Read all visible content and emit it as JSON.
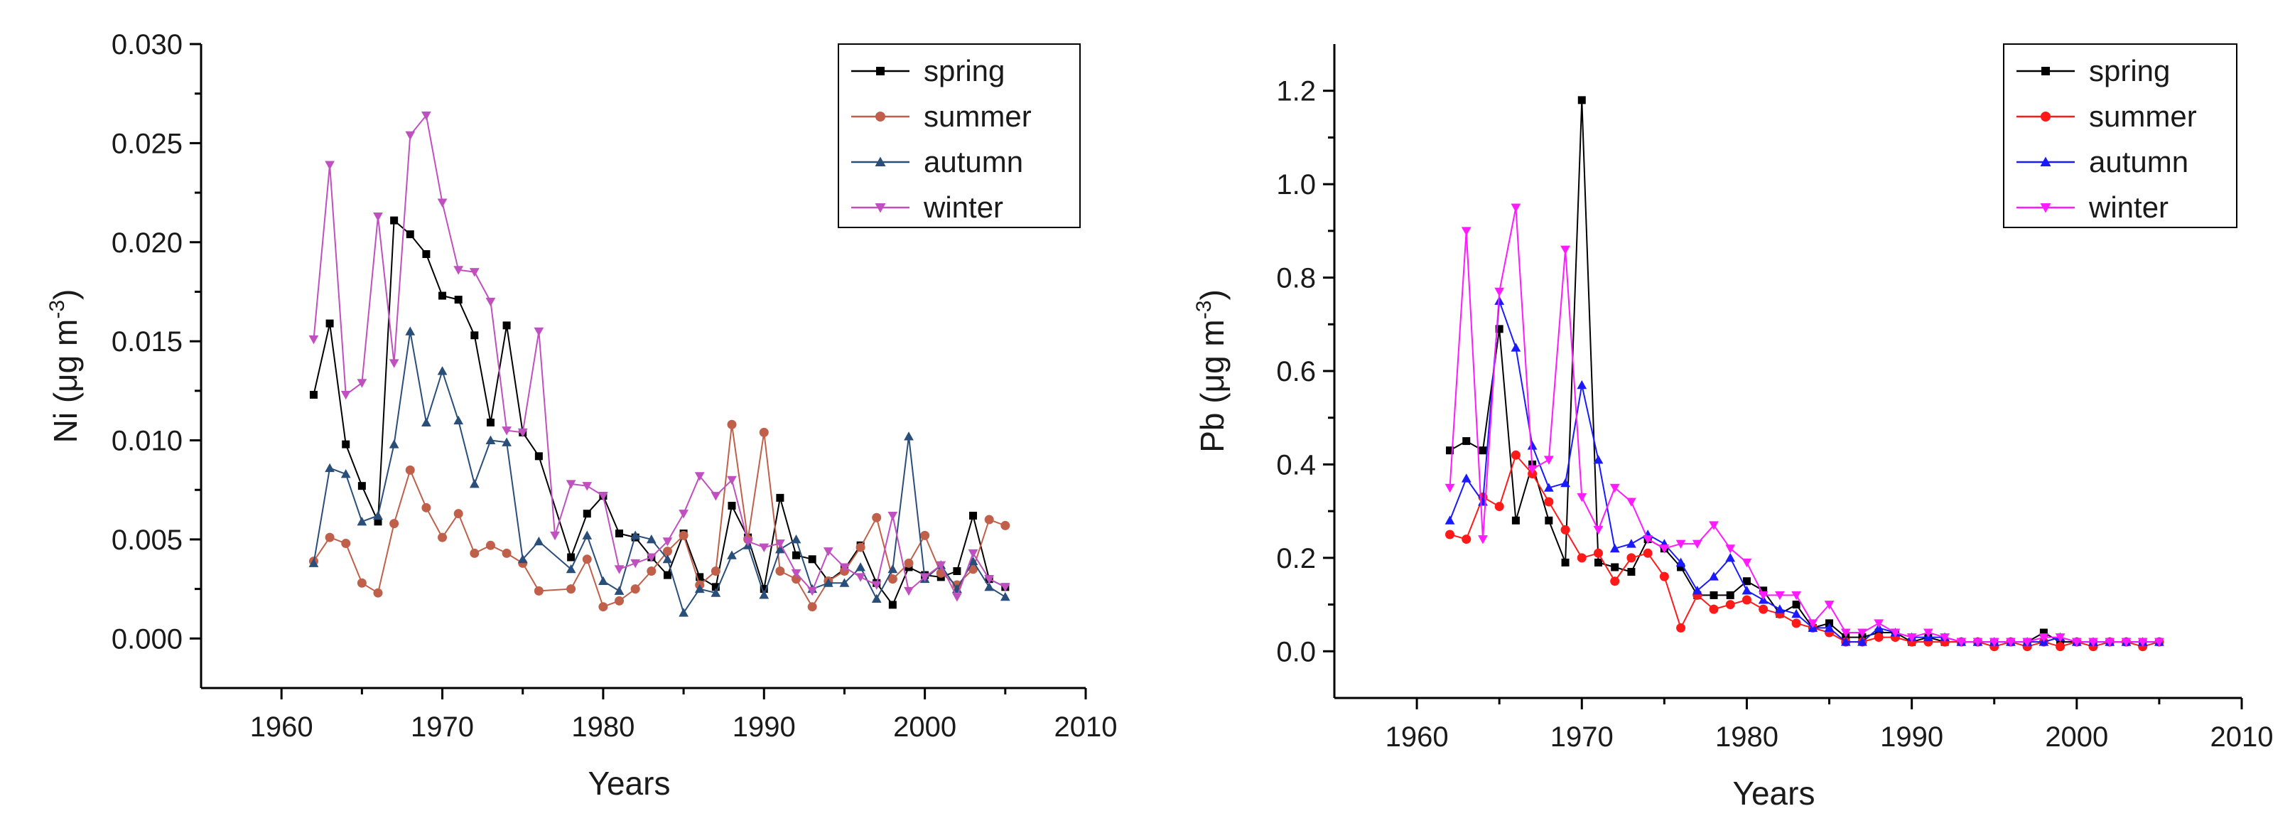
{
  "chart_data": [
    {
      "type": "line",
      "ylabel_main": "Ni (μg m",
      "ylabel_sup": "-3",
      "ylabel_end": ")",
      "xlabel": "Years",
      "xlim": [
        1955,
        2010
      ],
      "ylim": [
        -0.0025,
        0.03
      ],
      "xticks": [
        1960,
        1970,
        1980,
        1990,
        2000,
        2010
      ],
      "yticks": [
        0.0,
        0.005,
        0.01,
        0.015,
        0.02,
        0.025,
        0.03
      ],
      "ytick_labels": [
        "0.000",
        "0.005",
        "0.010",
        "0.015",
        "0.020",
        "0.025",
        "0.030"
      ],
      "legend_position": "top-right",
      "series": [
        {
          "name": "spring",
          "color": "#000000",
          "marker": "square",
          "x": [
            1962,
            1963,
            1964,
            1965,
            1966,
            1967,
            1968,
            1969,
            1970,
            1971,
            1972,
            1973,
            1974,
            1975,
            1976,
            1978,
            1979,
            1980,
            1981,
            1982,
            1983,
            1984,
            1985,
            1986,
            1987,
            1988,
            1989,
            1990,
            1991,
            1992,
            1993,
            1994,
            1995,
            1996,
            1997,
            1998,
            1999,
            2000,
            2001,
            2002,
            2003,
            2004,
            2005
          ],
          "values": [
            0.0123,
            0.0159,
            0.0098,
            0.0077,
            0.0059,
            0.0211,
            0.0204,
            0.0194,
            0.0173,
            0.0171,
            0.0153,
            0.0109,
            0.0158,
            0.0104,
            0.0092,
            0.0041,
            0.0063,
            0.0072,
            0.0053,
            0.0051,
            0.0041,
            0.0032,
            0.0053,
            0.0031,
            0.0026,
            0.0067,
            0.0051,
            0.0025,
            0.0071,
            0.0042,
            0.004,
            0.0029,
            0.0035,
            0.0047,
            0.0028,
            0.0017,
            0.0036,
            0.0032,
            0.0031,
            0.0034,
            0.0062,
            0.003,
            0.0026
          ]
        },
        {
          "name": "summer",
          "color": "#c0604a",
          "marker": "circle",
          "x": [
            1962,
            1963,
            1964,
            1965,
            1966,
            1967,
            1968,
            1969,
            1970,
            1971,
            1972,
            1973,
            1974,
            1975,
            1976,
            1978,
            1979,
            1980,
            1981,
            1982,
            1983,
            1984,
            1985,
            1986,
            1987,
            1988,
            1989,
            1990,
            1991,
            1992,
            1993,
            1994,
            1995,
            1996,
            1997,
            1998,
            1999,
            2000,
            2001,
            2002,
            2003,
            2004,
            2005
          ],
          "values": [
            0.0039,
            0.0051,
            0.0048,
            0.0028,
            0.0023,
            0.0058,
            0.0085,
            0.0066,
            0.0051,
            0.0063,
            0.0043,
            0.0047,
            0.0043,
            0.0038,
            0.0024,
            0.0025,
            0.004,
            0.0016,
            0.0019,
            0.0025,
            0.0034,
            0.0044,
            0.0052,
            0.0027,
            0.0034,
            0.0108,
            0.005,
            0.0104,
            0.0034,
            0.003,
            0.0016,
            0.0029,
            0.0034,
            0.0046,
            0.0061,
            0.003,
            0.0038,
            0.0052,
            0.0033,
            0.0027,
            0.0035,
            0.006,
            0.0057
          ]
        },
        {
          "name": "autumn",
          "color": "#2a4e7a",
          "marker": "triangle-up",
          "x": [
            1962,
            1963,
            1964,
            1965,
            1966,
            1967,
            1968,
            1969,
            1970,
            1971,
            1972,
            1973,
            1974,
            1975,
            1976,
            1978,
            1979,
            1980,
            1981,
            1982,
            1983,
            1984,
            1985,
            1986,
            1987,
            1988,
            1989,
            1990,
            1991,
            1992,
            1993,
            1994,
            1995,
            1996,
            1997,
            1998,
            1999,
            2000,
            2001,
            2002,
            2003,
            2004,
            2005
          ],
          "values": [
            0.0038,
            0.0086,
            0.0083,
            0.0059,
            0.0062,
            0.0098,
            0.0155,
            0.0109,
            0.0135,
            0.011,
            0.0078,
            0.01,
            0.0099,
            0.004,
            0.0049,
            0.0035,
            0.0052,
            0.0029,
            0.0024,
            0.0052,
            0.005,
            0.004,
            0.0013,
            0.0025,
            0.0023,
            0.0042,
            0.0047,
            0.0022,
            0.0045,
            0.005,
            0.0025,
            0.0028,
            0.0028,
            0.0036,
            0.002,
            0.0035,
            0.0102,
            0.003,
            0.0037,
            0.0025,
            0.0039,
            0.0026,
            0.0021
          ]
        },
        {
          "name": "winter",
          "color": "#c050c0",
          "marker": "triangle-down",
          "x": [
            1962,
            1963,
            1964,
            1965,
            1966,
            1967,
            1968,
            1969,
            1970,
            1971,
            1972,
            1973,
            1974,
            1975,
            1976,
            1977,
            1978,
            1979,
            1980,
            1981,
            1982,
            1983,
            1984,
            1985,
            1986,
            1987,
            1988,
            1989,
            1990,
            1991,
            1992,
            1993,
            1994,
            1995,
            1996,
            1997,
            1998,
            1999,
            2000,
            2001,
            2002,
            2003,
            2004,
            2005
          ],
          "values": [
            0.0151,
            0.0239,
            0.0123,
            0.0129,
            0.0213,
            0.0139,
            0.0254,
            0.0264,
            0.022,
            0.0186,
            0.0185,
            0.017,
            0.0105,
            0.0104,
            0.0155,
            0.0052,
            0.0078,
            0.0077,
            0.0072,
            0.0035,
            0.0038,
            0.0041,
            0.0049,
            0.0063,
            0.0082,
            0.0072,
            0.008,
            0.0049,
            0.0046,
            0.0048,
            0.0033,
            0.0024,
            0.0044,
            0.0036,
            0.0031,
            0.0027,
            0.0062,
            0.0024,
            0.0031,
            0.0037,
            0.0021,
            0.0043,
            0.003,
            0.0026
          ]
        }
      ]
    },
    {
      "type": "line",
      "ylabel_main": "Pb (μg m",
      "ylabel_sup": "-3",
      "ylabel_end": ")",
      "xlabel": "Years",
      "xlim": [
        1955,
        2010
      ],
      "ylim": [
        -0.1,
        1.3
      ],
      "xticks": [
        1960,
        1970,
        1980,
        1990,
        2000,
        2010
      ],
      "yticks": [
        0.0,
        0.2,
        0.4,
        0.6,
        0.8,
        1.0,
        1.2
      ],
      "ytick_labels": [
        "0.0",
        "0.2",
        "0.4",
        "0.6",
        "0.8",
        "1.0",
        "1.2"
      ],
      "legend_position": "top-right",
      "series": [
        {
          "name": "spring",
          "color": "#000000",
          "marker": "square",
          "x": [
            1962,
            1963,
            1964,
            1965,
            1966,
            1967,
            1968,
            1969,
            1970,
            1971,
            1972,
            1973,
            1974,
            1975,
            1976,
            1977,
            1978,
            1979,
            1980,
            1981,
            1982,
            1983,
            1984,
            1985,
            1986,
            1987,
            1988,
            1989,
            1990,
            1991,
            1992,
            1993,
            1994,
            1995,
            1996,
            1997,
            1998,
            1999,
            2000,
            2001,
            2002,
            2003,
            2004,
            2005
          ],
          "values": [
            0.43,
            0.45,
            0.43,
            0.69,
            0.28,
            0.4,
            0.28,
            0.19,
            1.18,
            0.19,
            0.18,
            0.17,
            0.24,
            0.22,
            0.18,
            0.12,
            0.12,
            0.12,
            0.15,
            0.13,
            0.08,
            0.1,
            0.05,
            0.06,
            0.03,
            0.03,
            0.04,
            0.04,
            0.02,
            0.03,
            0.02,
            0.02,
            0.02,
            0.02,
            0.02,
            0.02,
            0.04,
            0.02,
            0.02,
            0.02,
            0.02,
            0.02,
            0.02,
            0.02
          ]
        },
        {
          "name": "summer",
          "color": "#ff1a1a",
          "marker": "circle",
          "x": [
            1962,
            1963,
            1964,
            1965,
            1966,
            1967,
            1968,
            1969,
            1970,
            1971,
            1972,
            1973,
            1974,
            1975,
            1976,
            1977,
            1978,
            1979,
            1980,
            1981,
            1982,
            1983,
            1984,
            1985,
            1986,
            1987,
            1988,
            1989,
            1990,
            1991,
            1992,
            1993,
            1994,
            1995,
            1996,
            1997,
            1998,
            1999,
            2000,
            2001,
            2002,
            2003,
            2004,
            2005
          ],
          "values": [
            0.25,
            0.24,
            0.33,
            0.31,
            0.42,
            0.38,
            0.32,
            0.26,
            0.2,
            0.21,
            0.15,
            0.2,
            0.21,
            0.16,
            0.05,
            0.12,
            0.09,
            0.1,
            0.11,
            0.09,
            0.08,
            0.06,
            0.05,
            0.04,
            0.02,
            0.02,
            0.03,
            0.03,
            0.02,
            0.02,
            0.02,
            0.02,
            0.02,
            0.01,
            0.02,
            0.01,
            0.02,
            0.01,
            0.02,
            0.01,
            0.02,
            0.02,
            0.01,
            0.02
          ]
        },
        {
          "name": "autumn",
          "color": "#1a1aff",
          "marker": "triangle-up",
          "x": [
            1962,
            1963,
            1964,
            1965,
            1966,
            1967,
            1968,
            1969,
            1970,
            1971,
            1972,
            1973,
            1974,
            1975,
            1976,
            1977,
            1978,
            1979,
            1980,
            1981,
            1982,
            1983,
            1984,
            1985,
            1986,
            1987,
            1988,
            1989,
            1990,
            1991,
            1992,
            1993,
            1994,
            1995,
            1996,
            1997,
            1998,
            1999,
            2000,
            2001,
            2002,
            2003,
            2004,
            2005
          ],
          "values": [
            0.28,
            0.37,
            0.32,
            0.75,
            0.65,
            0.44,
            0.35,
            0.36,
            0.57,
            0.41,
            0.22,
            0.23,
            0.25,
            0.23,
            0.19,
            0.13,
            0.16,
            0.2,
            0.13,
            0.11,
            0.09,
            0.08,
            0.05,
            0.05,
            0.02,
            0.02,
            0.05,
            0.04,
            0.03,
            0.03,
            0.03,
            0.02,
            0.02,
            0.02,
            0.02,
            0.02,
            0.02,
            0.03,
            0.02,
            0.02,
            0.02,
            0.02,
            0.02,
            0.02
          ]
        },
        {
          "name": "winter",
          "color": "#ff1aff",
          "marker": "triangle-down",
          "x": [
            1962,
            1963,
            1964,
            1965,
            1966,
            1967,
            1968,
            1969,
            1970,
            1971,
            1972,
            1973,
            1974,
            1975,
            1976,
            1977,
            1978,
            1979,
            1980,
            1981,
            1982,
            1983,
            1984,
            1985,
            1986,
            1987,
            1988,
            1989,
            1990,
            1991,
            1992,
            1993,
            1994,
            1995,
            1996,
            1997,
            1998,
            1999,
            2000,
            2001,
            2002,
            2003,
            2004,
            2005
          ],
          "values": [
            0.35,
            0.9,
            0.24,
            0.77,
            0.95,
            0.39,
            0.41,
            0.86,
            0.33,
            0.26,
            0.35,
            0.32,
            0.24,
            0.22,
            0.23,
            0.23,
            0.27,
            0.22,
            0.19,
            0.12,
            0.12,
            0.12,
            0.06,
            0.1,
            0.04,
            0.04,
            0.06,
            0.04,
            0.03,
            0.04,
            0.03,
            0.02,
            0.02,
            0.02,
            0.02,
            0.02,
            0.03,
            0.03,
            0.02,
            0.02,
            0.02,
            0.02,
            0.02,
            0.02
          ]
        }
      ]
    }
  ]
}
